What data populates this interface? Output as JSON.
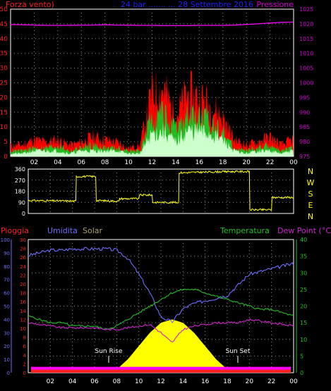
{
  "colors": {
    "background": "#000000",
    "frame": "#ffffff",
    "grid": "#8c8c8c",
    "wind_gust": "#ff0000",
    "wind_avg": "#22bb22",
    "wind_light": "#ccffcc",
    "pressure": "#ff00ff",
    "direction": "#ffff00",
    "rain_axis": "#ff2020",
    "humidity": "#6f6fff",
    "solar": "#ffff00",
    "temperature": "#22c022",
    "dew_point": "#d020d0",
    "ticks": "#ffffff"
  },
  "top_panel": {
    "left_title": "Forza vento)",
    "center_title": "24 bar ....... ... 28 Settembre 2016",
    "right_title": "Pressione"
  },
  "direction_panel": {
    "compass": [
      "N",
      "W",
      "S",
      "E",
      "N"
    ]
  },
  "bottom_panel": {
    "pioggia_label": "Pioggia",
    "umidita_label": "Umidita",
    "solar_label": "Solar",
    "temperatura_label": "Temperatura",
    "dewpoint_label": "Dew Point (°C)",
    "sunrise_label": "Sun Rise",
    "sunset_label": "Sun Set"
  },
  "chart_data": [
    {
      "type": "area",
      "id": "wind_pressure",
      "x_ticks": [
        "02",
        "04",
        "06",
        "08",
        "10",
        "12",
        "14",
        "16",
        "18",
        "20",
        "22",
        "00"
      ],
      "y_left_ticks": [
        0,
        5,
        10,
        15,
        20,
        25,
        30,
        35,
        40,
        45,
        50
      ],
      "y_left_range": [
        0,
        50
      ],
      "y_right_ticks": [
        975,
        980,
        985,
        990,
        995,
        1000,
        1005,
        1010,
        1015,
        1020,
        1025
      ],
      "y_right_range": [
        975,
        1025
      ],
      "grid": true,
      "x_hours": [
        0,
        1,
        2,
        3,
        4,
        5,
        6,
        7,
        8,
        9,
        10,
        11,
        12,
        13,
        14,
        15,
        16,
        17,
        18,
        19,
        20,
        21,
        22,
        23,
        24
      ],
      "series": [
        {
          "values": [
            4,
            4,
            6,
            5,
            6,
            4,
            5,
            7,
            6,
            5,
            3,
            4,
            22,
            24,
            14,
            22,
            21,
            18,
            14,
            6,
            4,
            5,
            7,
            4,
            6
          ]
        },
        {
          "values": [
            2,
            2,
            3,
            3,
            4,
            2,
            3,
            4,
            3,
            3,
            2,
            2,
            14,
            15,
            9,
            14,
            14,
            12,
            9,
            3,
            2,
            3,
            4,
            2,
            3
          ]
        },
        {
          "values": [
            1,
            1,
            2,
            2,
            2,
            1,
            2,
            2,
            2,
            2,
            1,
            1,
            8,
            9,
            5,
            9,
            9,
            8,
            6,
            2,
            1,
            2,
            2,
            1,
            2
          ]
        },
        {
          "axis": "right",
          "values": [
            1019.8,
            1019.7,
            1019.6,
            1019.5,
            1019.5,
            1019.5,
            1019.6,
            1019.6,
            1019.7,
            1019.6,
            1019.6,
            1019.5,
            1019.5,
            1019.4,
            1019.4,
            1019.4,
            1019.5,
            1019.5,
            1019.5,
            1019.6,
            1019.8,
            1020.0,
            1020.3,
            1020.5,
            1020.6
          ]
        }
      ]
    },
    {
      "type": "line",
      "id": "wind_direction",
      "x_ticks": [
        "02",
        "04",
        "06",
        "08",
        "10",
        "12",
        "14",
        "16",
        "18",
        "20",
        "22",
        "00"
      ],
      "y_ticks": [
        0,
        90,
        180,
        270,
        360
      ],
      "y_range": [
        0,
        360
      ],
      "grid": true,
      "x_hours": [
        0,
        4.3,
        4.35,
        6.1,
        6.15,
        8.2,
        8.25,
        10.0,
        10.05,
        11.2,
        11.25,
        13.6,
        13.65,
        17.9,
        17.95,
        18.5,
        18.55,
        20.0,
        20.05,
        22.0,
        22.05,
        24
      ],
      "series": [
        {
          "values": [
            105,
            100,
            300,
            300,
            105,
            100,
            120,
            120,
            150,
            150,
            90,
            90,
            330,
            340,
            340,
            340,
            340,
            340,
            30,
            30,
            130,
            130
          ]
        }
      ]
    },
    {
      "type": "line",
      "id": "temp_humidity_solar",
      "x_ticks": [
        "02",
        "04",
        "06",
        "08",
        "10",
        "12",
        "14",
        "16",
        "18",
        "20",
        "22",
        "00"
      ],
      "y_pioggia_ticks": [
        0,
        2,
        4,
        6,
        8,
        10,
        12,
        14,
        16,
        18,
        20,
        22,
        24,
        26,
        28,
        30
      ],
      "y_pioggia_range": [
        0,
        30
      ],
      "y_humidity_ticks": [
        0,
        10,
        20,
        30,
        40,
        50,
        60,
        70,
        80,
        90,
        100
      ],
      "y_humidity_range": [
        0,
        100
      ],
      "y_temp_ticks": [
        0,
        5,
        10,
        15,
        20,
        25,
        30,
        35,
        40
      ],
      "y_temp_range": [
        0,
        40
      ],
      "grid": true,
      "x_hours": [
        0,
        1,
        2,
        3,
        4,
        5,
        6,
        7,
        8,
        9,
        10,
        11,
        12,
        13,
        14,
        15,
        16,
        17,
        18,
        19,
        20,
        21,
        22,
        23,
        24
      ],
      "series": [
        {
          "axis": "humidity",
          "values": [
            88,
            90,
            92,
            92,
            93,
            93,
            93,
            93,
            92,
            86,
            74,
            60,
            42,
            38,
            48,
            52,
            54,
            56,
            58,
            66,
            74,
            76,
            78,
            80,
            82
          ]
        },
        {
          "axis": "temp",
          "values": [
            17,
            16,
            15,
            15,
            14,
            14,
            14,
            13,
            14,
            16,
            18,
            20,
            22,
            24,
            25,
            25,
            24,
            23,
            22,
            21,
            20,
            19,
            19,
            18,
            17
          ]
        },
        {
          "axis": "temp",
          "values": [
            15,
            14.5,
            14,
            13.5,
            13.5,
            13.5,
            13.5,
            13,
            13,
            13.5,
            14,
            14.5,
            12,
            9,
            13,
            14,
            14.5,
            15,
            15,
            15,
            16,
            15.5,
            15,
            14.5,
            14
          ]
        },
        {
          "axis": "temp",
          "values": [
            0,
            0,
            0,
            0,
            0,
            0,
            0,
            0,
            1,
            4,
            8,
            12,
            15,
            16,
            15,
            12,
            8,
            4,
            1,
            0,
            0,
            0,
            0,
            0,
            0
          ]
        },
        {
          "axis": "pioggia",
          "values": [
            1,
            1,
            1,
            1,
            1,
            1,
            1,
            1,
            1,
            1,
            1,
            1,
            1,
            1,
            1,
            1,
            1,
            1,
            1,
            1,
            1,
            1,
            1,
            1,
            1
          ]
        }
      ]
    }
  ]
}
